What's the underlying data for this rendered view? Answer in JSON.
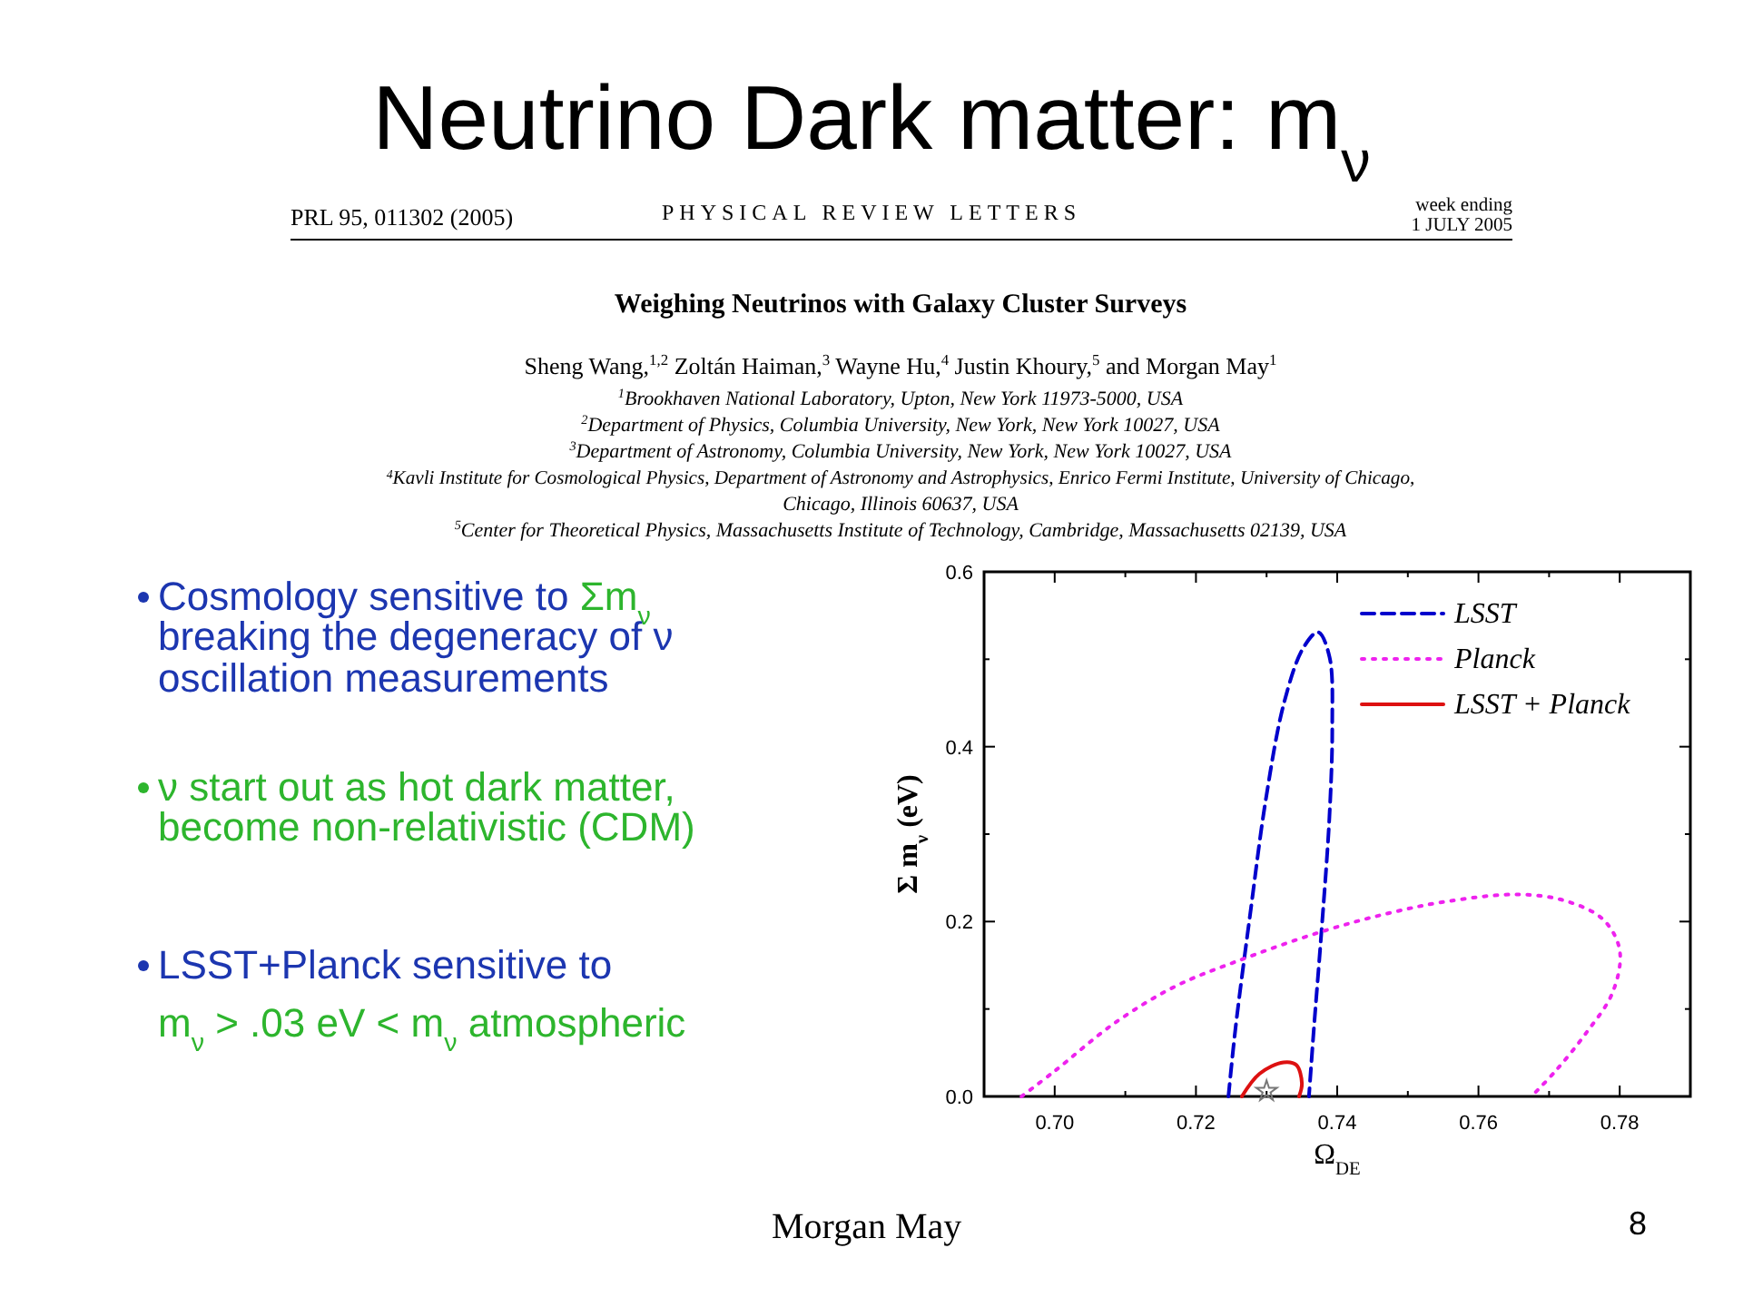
{
  "chart_data": {
    "type": "line",
    "title": "Neutrino Dark matter: m$_{ν}$",
    "xlabel": "Ω$_{DE}$",
    "ylabel": "Σ m$_{ν}$ (eV)",
    "xlim": [
      0.69,
      0.79
    ],
    "ylim": [
      0,
      0.6
    ],
    "xticks": [
      {
        "value": 0.7,
        "label": "0.70"
      },
      {
        "value": 0.71,
        "label": null
      },
      {
        "value": 0.72,
        "label": "0.72"
      },
      {
        "value": 0.73,
        "label": null
      },
      {
        "value": 0.74,
        "label": "0.74"
      },
      {
        "value": 0.75,
        "label": null
      },
      {
        "value": 0.76,
        "label": "0.76"
      },
      {
        "value": 0.77,
        "label": null
      },
      {
        "value": 0.78,
        "label": "0.78"
      }
    ],
    "yticks": [
      {
        "value": 0,
        "label": "0.0"
      },
      {
        "value": 0.1,
        "label": null
      },
      {
        "value": 0.2,
        "label": "0.2"
      },
      {
        "value": 0.3,
        "label": null
      },
      {
        "value": 0.4,
        "label": "0.4"
      },
      {
        "value": 0.5,
        "label": null
      },
      {
        "value": 0.6,
        "label": "0.6"
      }
    ],
    "legend": "top right",
    "series": [
      {
        "name": "LSST",
        "color": "#0000cc",
        "line_style": "dashed",
        "marker": "none",
        "x": [
          0.7246,
          0.7256,
          0.7278,
          0.7299,
          0.7325,
          0.7352,
          0.7373,
          0.7389,
          0.7393,
          0.7389,
          0.7377,
          0.7367,
          0.736
        ],
        "values": [
          0,
          0.078,
          0.216,
          0.34,
          0.451,
          0.513,
          0.531,
          0.503,
          0.424,
          0.32,
          0.181,
          0.078,
          0
        ]
      },
      {
        "name": "Planck",
        "color": "#ee22ee",
        "line_style": "dotted",
        "marker": "none",
        "x": [
          0.6953,
          0.7,
          0.7085,
          0.7171,
          0.7256,
          0.7376,
          0.747,
          0.7555,
          0.7658,
          0.7726,
          0.7777,
          0.78,
          0.779,
          0.7751,
          0.7709,
          0.7675
        ],
        "values": [
          0,
          0.029,
          0.084,
          0.126,
          0.154,
          0.188,
          0.209,
          0.223,
          0.231,
          0.223,
          0.202,
          0.167,
          0.119,
          0.071,
          0.029,
          0
        ]
      },
      {
        "name": "LSST + Planck",
        "color": "#dd1111",
        "line_style": "solid",
        "marker": "none",
        "x": [
          0.7265,
          0.729,
          0.7324,
          0.7342,
          0.735,
          0.7346
        ],
        "values": [
          0,
          0.026,
          0.039,
          0.036,
          0.015,
          0
        ]
      },
      {
        "type": "scatter",
        "color": "#777777",
        "marker": "star",
        "x": [
          0.73
        ],
        "values": [
          0.006
        ]
      }
    ],
    "annotations": [
      "PRL 95, 011302 (2005)",
      "PHYSICAL REVIEW LETTERS",
      "week ending",
      "1 JULY 2005",
      "Weighing Neutrinos with Galaxy Cluster Surveys",
      "Sheng Wang,$^{1,2}$ Zoltán Haiman,$^{3}$ Wayne Hu,$^{4}$ Justin Khoury,$^{5}$ and Morgan May$^{1}$",
      "$^{1}$Brookhaven National Laboratory, Upton, New York 11973-5000, USA",
      "$^{2}$Department of Physics, Columbia University, New York, New York 10027, USA",
      "$^{3}$Department of Astronomy, Columbia University, New York, New York 10027, USA",
      "$^{4}$Kavli Institute for Cosmological Physics, Department of Astronomy and Astrophysics, Enrico Fermi Institute, University of Chicago,",
      "Chicago, Illinois 60637, USA",
      "$^{5}$Center for Theoretical Physics, Massachusetts Institute of Technology, Cambridge, Massachusetts 02139, USA",
      "Cosmology sensitive to ",
      "Σm$_{ν}$",
      "breaking the degeneracy of ν",
      "oscillation measurements",
      "ν start out as hot dark matter,",
      "become non-relativistic (CDM)",
      "LSST+Planck sensitive to",
      "m$_{ν}$ > .03 eV < m$_{ν}$ atmospheric",
      "Morgan May",
      "8"
    ]
  }
}
